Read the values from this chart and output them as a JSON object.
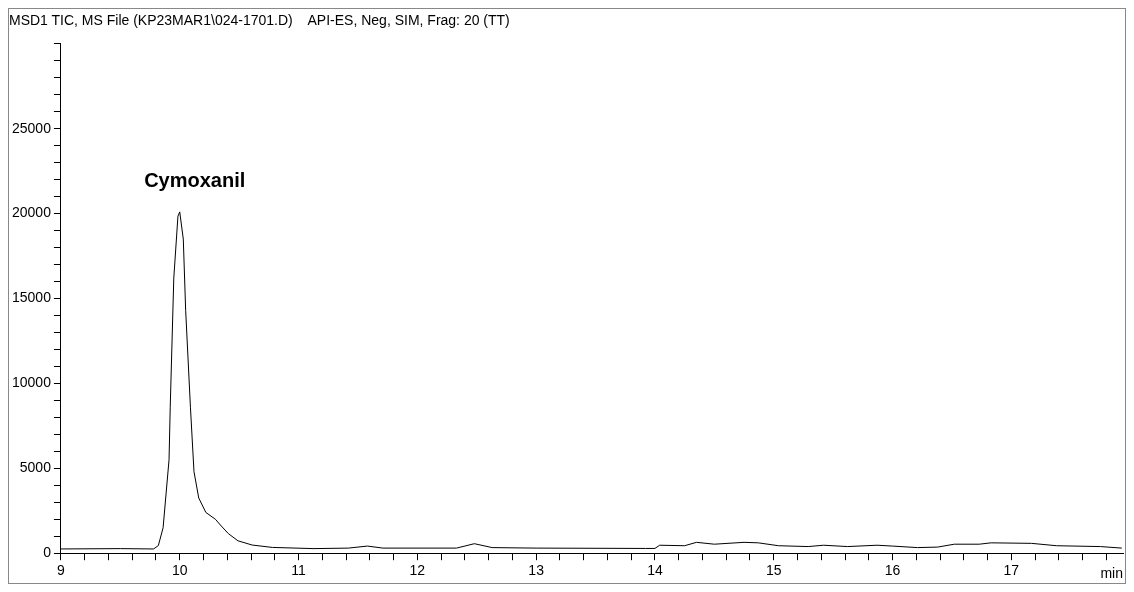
{
  "chart_data": {
    "type": "line",
    "title": "MSD1 TIC, MS File (KP23MAR1\\024-1701.D)    API-ES, Neg, SIM, Frag: 20 (TT)",
    "xlabel": "min",
    "annotations": [
      {
        "text": "Cymoxanil",
        "x": 10.0,
        "y": 20100
      }
    ],
    "series": [
      {
        "color": "#000000",
        "x": [
          9.0,
          9.5,
          9.78,
          9.82,
          9.86,
          9.91,
          9.92,
          9.95,
          9.985,
          10.0,
          10.03,
          10.05,
          10.09,
          10.12,
          10.16,
          10.22,
          10.3,
          10.35,
          10.41,
          10.49,
          10.61,
          10.78,
          11.13,
          11.42,
          11.58,
          11.71,
          12.33,
          12.48,
          12.63,
          13.0,
          13.92,
          14.0,
          14.04,
          14.25,
          14.35,
          14.5,
          14.75,
          14.87,
          15.04,
          15.29,
          15.42,
          15.62,
          15.87,
          16.0,
          16.21,
          16.38,
          16.52,
          16.73,
          16.83,
          17.17,
          17.38,
          17.75,
          17.93
        ],
        "values": [
          250,
          270,
          250,
          450,
          1500,
          5500,
          8600,
          16200,
          19850,
          20100,
          18500,
          14300,
          8600,
          4800,
          3250,
          2400,
          2000,
          1600,
          1150,
          730,
          480,
          340,
          270,
          300,
          420,
          300,
          300,
          560,
          330,
          300,
          280,
          280,
          470,
          440,
          640,
          530,
          640,
          610,
          440,
          390,
          470,
          390,
          470,
          420,
          330,
          360,
          530,
          530,
          610,
          580,
          440,
          390,
          300
        ]
      }
    ],
    "xlim": [
      9,
      17.94
    ],
    "xticks": [
      9,
      {
        "value": 9.2,
        "label": null
      },
      {
        "value": 9.4,
        "label": null
      },
      {
        "value": 9.6,
        "label": null
      },
      {
        "value": 9.8,
        "label": null
      },
      10,
      {
        "value": 10.2,
        "label": null
      },
      {
        "value": 10.4,
        "label": null
      },
      {
        "value": 10.6,
        "label": null
      },
      {
        "value": 10.8,
        "label": null
      },
      11,
      {
        "value": 11.2,
        "label": null
      },
      {
        "value": 11.4,
        "label": null
      },
      {
        "value": 11.6,
        "label": null
      },
      {
        "value": 11.8,
        "label": null
      },
      12,
      {
        "value": 12.2,
        "label": null
      },
      {
        "value": 12.4,
        "label": null
      },
      {
        "value": 12.6,
        "label": null
      },
      {
        "value": 12.8,
        "label": null
      },
      13,
      {
        "value": 13.2,
        "label": null
      },
      {
        "value": 13.4,
        "label": null
      },
      {
        "value": 13.6,
        "label": null
      },
      {
        "value": 13.8,
        "label": null
      },
      14,
      {
        "value": 14.2,
        "label": null
      },
      {
        "value": 14.4,
        "label": null
      },
      {
        "value": 14.6,
        "label": null
      },
      {
        "value": 14.8,
        "label": null
      },
      15,
      {
        "value": 15.2,
        "label": null
      },
      {
        "value": 15.4,
        "label": null
      },
      {
        "value": 15.6,
        "label": null
      },
      {
        "value": 15.8,
        "label": null
      },
      16,
      {
        "value": 16.2,
        "label": null
      },
      {
        "value": 16.4,
        "label": null
      },
      {
        "value": 16.6,
        "label": null
      },
      {
        "value": 16.8,
        "label": null
      },
      17,
      {
        "value": 17.2,
        "label": null
      },
      {
        "value": 17.4,
        "label": null
      },
      {
        "value": 17.6,
        "label": null
      },
      {
        "value": 17.8,
        "label": null
      }
    ],
    "ylim": [
      0,
      30000
    ],
    "yticks": [
      0,
      {
        "value": 1000,
        "label": null
      },
      {
        "value": 2000,
        "label": null
      },
      {
        "value": 3000,
        "label": null
      },
      {
        "value": 4000,
        "label": null
      },
      5000,
      {
        "value": 6000,
        "label": null
      },
      {
        "value": 7000,
        "label": null
      },
      {
        "value": 8000,
        "label": null
      },
      {
        "value": 9000,
        "label": null
      },
      10000,
      {
        "value": 11000,
        "label": null
      },
      {
        "value": 12000,
        "label": null
      },
      {
        "value": 13000,
        "label": null
      },
      {
        "value": 14000,
        "label": null
      },
      15000,
      {
        "value": 16000,
        "label": null
      },
      {
        "value": 17000,
        "label": null
      },
      {
        "value": 18000,
        "label": null
      },
      {
        "value": 19000,
        "label": null
      },
      20000,
      {
        "value": 21000,
        "label": null
      },
      {
        "value": 22000,
        "label": null
      },
      {
        "value": 23000,
        "label": null
      },
      {
        "value": 24000,
        "label": null
      },
      25000,
      {
        "value": 26000,
        "label": null
      },
      {
        "value": 27000,
        "label": null
      },
      {
        "value": 28000,
        "label": null
      },
      {
        "value": 29000,
        "label": null
      },
      {
        "value": 30000,
        "label": null
      }
    ],
    "grid": false,
    "legend": false,
    "marker": "none",
    "line_style": "solid"
  }
}
